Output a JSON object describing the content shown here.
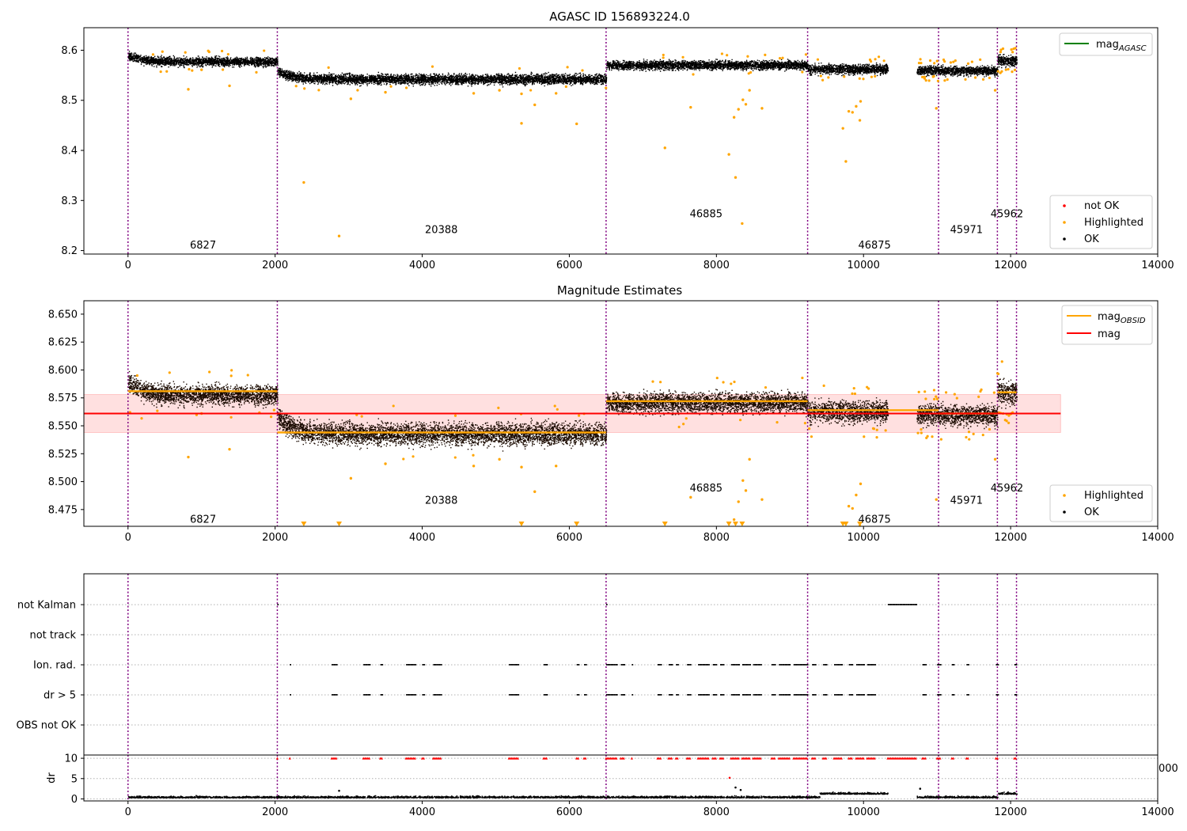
{
  "chart_data": [
    {
      "type": "scatter",
      "title": "AGASC ID 156893224.0",
      "xlim": [
        -600,
        14000
      ],
      "ylim": [
        8.193,
        8.645
      ],
      "xticks": [
        0,
        2000,
        4000,
        6000,
        8000,
        10000,
        12000,
        14000
      ],
      "yticks": [
        8.2,
        8.3,
        8.4,
        8.5,
        8.6
      ],
      "obs_boundaries": [
        0,
        2030,
        6500,
        9240,
        11020,
        11820,
        12080
      ],
      "obsid_labels": [
        {
          "text": "6827",
          "x": 1020,
          "y": 8.21
        },
        {
          "text": "20388",
          "x": 4260,
          "y": 8.241
        },
        {
          "text": "46885",
          "x": 7860,
          "y": 8.273
        },
        {
          "text": "46875",
          "x": 10150,
          "y": 8.21
        },
        {
          "text": "45971",
          "x": 11400,
          "y": 8.241
        },
        {
          "text": "45962",
          "x": 11950,
          "y": 8.273
        }
      ],
      "segments": [
        {
          "x0": 0,
          "x1": 2030,
          "mean": 8.578,
          "spread": 0.008,
          "start_mean": 8.59
        },
        {
          "x0": 2030,
          "x1": 6500,
          "mean": 8.543,
          "spread": 0.009,
          "start_mean": 8.56
        },
        {
          "x0": 6500,
          "x1": 9240,
          "mean": 8.571,
          "spread": 0.008
        },
        {
          "x0": 9240,
          "x1": 10330,
          "mean": 8.563,
          "spread": 0.009
        },
        {
          "x0": 10720,
          "x1": 11020,
          "mean": 8.561,
          "spread": 0.008
        },
        {
          "x0": 11020,
          "x1": 11820,
          "mean": 8.56,
          "spread": 0.008
        },
        {
          "x0": 11820,
          "x1": 12080,
          "mean": 8.58,
          "spread": 0.01
        }
      ],
      "highlighted_points": [
        [
          820,
          8.522
        ],
        [
          1380,
          8.529
        ],
        [
          2390,
          8.336
        ],
        [
          2870,
          8.229
        ],
        [
          3030,
          8.503
        ],
        [
          5350,
          8.454
        ],
        [
          5350,
          8.513
        ],
        [
          5530,
          8.491
        ],
        [
          6100,
          8.453
        ],
        [
          7300,
          8.405
        ],
        [
          7650,
          8.486
        ],
        [
          8170,
          8.392
        ],
        [
          8260,
          8.346
        ],
        [
          8350,
          8.254
        ],
        [
          8240,
          8.466
        ],
        [
          8300,
          8.482
        ],
        [
          8360,
          8.501
        ],
        [
          8400,
          8.492
        ],
        [
          8450,
          8.52
        ],
        [
          8620,
          8.484
        ],
        [
          9720,
          8.444
        ],
        [
          9760,
          8.378
        ],
        [
          9800,
          8.478
        ],
        [
          9850,
          8.476
        ],
        [
          9900,
          8.488
        ],
        [
          9950,
          8.46
        ],
        [
          9960,
          8.498
        ],
        [
          10990,
          8.484
        ],
        [
          11790,
          8.52
        ],
        [
          1000,
          8.561
        ],
        [
          3500,
          8.516
        ],
        [
          4700,
          8.514
        ],
        [
          5050,
          8.52
        ],
        [
          5820,
          8.514
        ]
      ],
      "legends": [
        {
          "position": "upper right",
          "entries": [
            {
              "label": "mag",
              "subscript": "AGASC",
              "color": "#008000",
              "marker": "line"
            }
          ]
        },
        {
          "position": "lower right",
          "entries": [
            {
              "label": "not OK",
              "color": "#ff0000",
              "marker": "dot"
            },
            {
              "label": "Highlighted",
              "color": "#ffa500",
              "marker": "dot"
            },
            {
              "label": "OK",
              "color": "#000000",
              "marker": "dot"
            }
          ]
        }
      ]
    },
    {
      "type": "scatter",
      "title": "Magnitude Estimates",
      "xlim": [
        -600,
        14000
      ],
      "ylim": [
        8.46,
        8.662
      ],
      "xticks": [
        0,
        2000,
        4000,
        6000,
        8000,
        10000,
        12000,
        14000
      ],
      "yticks": [
        8.475,
        8.5,
        8.525,
        8.55,
        8.575,
        8.6,
        8.625,
        8.65
      ],
      "ytick_labels": [
        "8.475",
        "8.500",
        "8.525",
        "8.550",
        "8.575",
        "8.600",
        "8.625",
        "8.650"
      ],
      "mag": 8.561,
      "mag_band": [
        8.544,
        8.578
      ],
      "mag_xrange": [
        -600,
        12680
      ],
      "mag_obsid": [
        {
          "x0": 0,
          "x1": 2030,
          "value": 8.581
        },
        {
          "x0": 2030,
          "x1": 6500,
          "value": 8.544
        },
        {
          "x0": 6500,
          "x1": 9240,
          "value": 8.572
        },
        {
          "x0": 9240,
          "x1": 11020,
          "value": 8.564
        },
        {
          "x0": 11020,
          "x1": 11820,
          "value": 8.561
        },
        {
          "x0": 11820,
          "x1": 12080,
          "value": 8.58
        }
      ],
      "obsid_labels": [
        {
          "text": "6827",
          "x": 1020,
          "y": 8.466
        },
        {
          "text": "20388",
          "x": 4260,
          "y": 8.483
        },
        {
          "text": "46885",
          "x": 7860,
          "y": 8.494
        },
        {
          "text": "46875",
          "x": 10150,
          "y": 8.466
        },
        {
          "text": "45971",
          "x": 11400,
          "y": 8.483
        },
        {
          "text": "45962",
          "x": 11950,
          "y": 8.494
        }
      ],
      "offscale_markers_x": [
        2390,
        2870,
        5350,
        6100,
        7300,
        8170,
        8260,
        8350,
        9720,
        9760,
        9950
      ],
      "legends": [
        {
          "position": "upper right",
          "entries": [
            {
              "label": "mag",
              "subscript": "OBSID",
              "color": "#ffa500",
              "marker": "line"
            },
            {
              "label": "mag",
              "color": "#ff0000",
              "marker": "line"
            }
          ]
        },
        {
          "position": "lower right",
          "entries": [
            {
              "label": "Highlighted",
              "color": "#ffa500",
              "marker": "dot"
            },
            {
              "label": "OK",
              "color": "#000000",
              "marker": "dot"
            }
          ]
        }
      ]
    },
    {
      "type": "scatter",
      "title": "",
      "xlim": [
        -600,
        14000
      ],
      "flag_rows": [
        "not Kalman",
        "not track",
        "Ion. rad.",
        "dr > 5",
        "OBS not OK"
      ],
      "flag_points_xranges": {
        "not Kalman": [
          [
            2030,
            2030
          ],
          [
            6500,
            6500
          ],
          [
            10330,
            10720
          ]
        ],
        "dr_gt_5": [
          [
            2200,
            2200
          ],
          [
            2770,
            2830
          ],
          [
            3200,
            3280
          ],
          [
            3430,
            3450
          ],
          [
            3780,
            3900
          ],
          [
            4000,
            4020
          ],
          [
            4150,
            4250
          ],
          [
            5180,
            5300
          ],
          [
            5650,
            5700
          ],
          [
            6100,
            6130
          ],
          [
            6200,
            6230
          ],
          [
            6500,
            6650
          ],
          [
            6700,
            6750
          ],
          [
            6850,
            6860
          ],
          [
            7200,
            7250
          ],
          [
            7350,
            7400
          ],
          [
            7450,
            7480
          ],
          [
            7600,
            7650
          ],
          [
            7750,
            7900
          ],
          [
            7950,
            8000
          ],
          [
            8050,
            8100
          ],
          [
            8200,
            8300
          ],
          [
            8350,
            8450
          ],
          [
            8500,
            8600
          ],
          [
            8750,
            8800
          ],
          [
            8850,
            9000
          ],
          [
            9050,
            9240
          ],
          [
            9300,
            9350
          ],
          [
            9450,
            9500
          ],
          [
            9600,
            9700
          ],
          [
            9800,
            9850
          ],
          [
            9900,
            10000
          ],
          [
            10050,
            10150
          ],
          [
            10800,
            10850
          ],
          [
            11000,
            11050
          ],
          [
            11200,
            11220
          ],
          [
            11400,
            11430
          ],
          [
            11800,
            11830
          ],
          [
            12050,
            12080
          ]
        ],
        "ion_rad": [
          [
            2200,
            2200
          ],
          [
            2770,
            2830
          ],
          [
            3200,
            3280
          ],
          [
            3430,
            3450
          ],
          [
            3780,
            3900
          ],
          [
            4000,
            4020
          ],
          [
            4150,
            4250
          ],
          [
            5180,
            5300
          ],
          [
            5650,
            5700
          ],
          [
            6100,
            6130
          ],
          [
            6200,
            6230
          ],
          [
            6500,
            6650
          ],
          [
            6700,
            6750
          ],
          [
            6850,
            6860
          ],
          [
            7200,
            7250
          ],
          [
            7350,
            7400
          ],
          [
            7450,
            7480
          ],
          [
            7600,
            7650
          ],
          [
            7750,
            7900
          ],
          [
            7950,
            8000
          ],
          [
            8050,
            8100
          ],
          [
            8200,
            8300
          ],
          [
            8350,
            8450
          ],
          [
            8500,
            8600
          ],
          [
            8750,
            8800
          ],
          [
            8850,
            9000
          ],
          [
            9050,
            9240
          ],
          [
            9300,
            9350
          ],
          [
            9450,
            9500
          ],
          [
            9600,
            9700
          ],
          [
            9800,
            9850
          ],
          [
            9900,
            10000
          ],
          [
            10050,
            10150
          ],
          [
            10800,
            10850
          ],
          [
            11000,
            11050
          ],
          [
            11200,
            11220
          ],
          [
            11400,
            11430
          ],
          [
            11800,
            11830
          ],
          [
            12050,
            12080
          ]
        ]
      }
    },
    {
      "type": "scatter",
      "title": "",
      "xlim": [
        -600,
        14000
      ],
      "ylim": [
        -0.5,
        10.8
      ],
      "ylabel": "dr",
      "xticks": [
        0,
        2000,
        4000,
        6000,
        8000,
        10000,
        12000,
        14000
      ],
      "yticks": [
        0,
        5,
        10
      ],
      "clipped_tick_text": "000",
      "dr_baseline": 0.4,
      "dr_capped_at": 10,
      "dr_outliers": [
        [
          8180,
          5.2
        ],
        [
          8260,
          2.8
        ],
        [
          8330,
          2.2
        ],
        [
          2870,
          2.0
        ],
        [
          10770,
          2.5
        ]
      ]
    }
  ]
}
